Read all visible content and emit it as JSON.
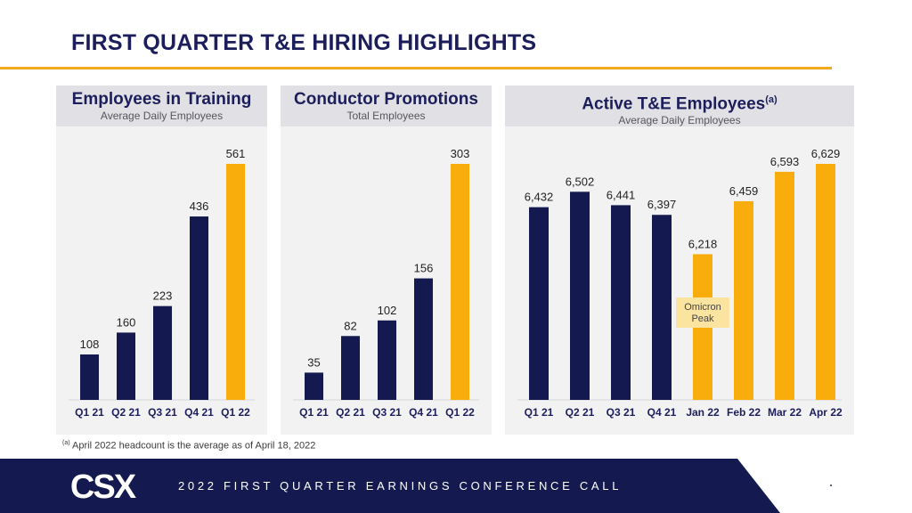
{
  "header": {
    "title": "FIRST QUARTER T&E HIRING HIGHLIGHTS"
  },
  "colors": {
    "navy": "#141a4f",
    "gold": "#f9ad0d",
    "title": "#1c1e5c",
    "accent_line": "#f2aa1c",
    "panel_bg": "#f2f2f3",
    "panel_head_bg": "#e1e1e5",
    "callout_bg": "#fbe3a0"
  },
  "panels": [
    {
      "title": "Employees in Training",
      "subtitle": "Average Daily Employees"
    },
    {
      "title": "Conductor Promotions",
      "subtitle": "Total Employees"
    },
    {
      "title": "Active T&E Employees",
      "title_sup": "(a)",
      "subtitle": "Average Daily Employees"
    }
  ],
  "chart_data": [
    {
      "type": "bar",
      "title": "Employees in Training",
      "subtitle": "Average Daily Employees",
      "categories": [
        "Q1 21",
        "Q2 21",
        "Q3 21",
        "Q4 21",
        "Q1 22"
      ],
      "values": [
        108,
        160,
        223,
        436,
        561
      ],
      "labels": [
        "108",
        "160",
        "223",
        "436",
        "561"
      ],
      "highlight": [
        false,
        false,
        false,
        false,
        true
      ],
      "ylim": [
        0,
        561
      ]
    },
    {
      "type": "bar",
      "title": "Conductor Promotions",
      "subtitle": "Total Employees",
      "categories": [
        "Q1 21",
        "Q2 21",
        "Q3 21",
        "Q4 21",
        "Q1 22"
      ],
      "values": [
        35,
        82,
        102,
        156,
        303
      ],
      "labels": [
        "35",
        "82",
        "102",
        "156",
        "303"
      ],
      "highlight": [
        false,
        false,
        false,
        false,
        true
      ],
      "ylim": [
        0,
        303
      ]
    },
    {
      "type": "bar",
      "title": "Active T&E Employees",
      "subtitle": "Average Daily Employees",
      "categories": [
        "Q1 21",
        "Q2 21",
        "Q3 21",
        "Q4 21",
        "Jan 22",
        "Feb 22",
        "Mar 22",
        "Apr 22"
      ],
      "values": [
        6432,
        6502,
        6441,
        6397,
        6218,
        6459,
        6593,
        6629
      ],
      "labels": [
        "6,432",
        "6,502",
        "6,441",
        "6,397",
        "6,218",
        "6,459",
        "6,593",
        "6,629"
      ],
      "highlight": [
        false,
        false,
        false,
        false,
        true,
        true,
        true,
        true
      ],
      "ylim": [
        5555,
        6629
      ],
      "annotation": {
        "lines": [
          "Omicron",
          "Peak"
        ],
        "category": "Jan 22"
      }
    }
  ],
  "footnote": {
    "marker": "(a)",
    "text": "April 2022 headcount is the average as of April 18, 2022"
  },
  "footer": {
    "text": "2022 FIRST QUARTER EARNINGS CONFERENCE CALL",
    "logo": "CSX"
  }
}
